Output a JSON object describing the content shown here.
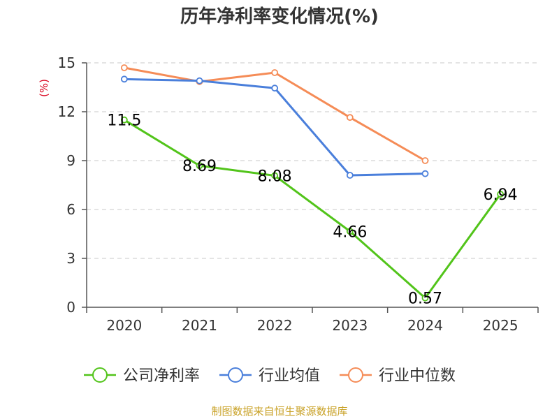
{
  "chart_data": {
    "type": "line",
    "title": "历年净利率变化情况(%)",
    "ylabel": "(%)",
    "xlabel": "",
    "categories": [
      "2020",
      "2021",
      "2022",
      "2023",
      "2024",
      "2025"
    ],
    "ylim": [
      0,
      15
    ],
    "yticks": [
      0,
      3,
      6,
      9,
      12,
      15
    ],
    "grid": true,
    "legend_position": "bottom",
    "series": [
      {
        "name": "公司净利率",
        "color": "#52c41a",
        "values": [
          11.5,
          8.69,
          8.08,
          4.66,
          0.57,
          6.94
        ],
        "labels": [
          "11.5",
          "8.69",
          "8.08",
          "4.66",
          "0.57",
          "6.94"
        ]
      },
      {
        "name": "行业均值",
        "color": "#4a7fdb",
        "values": [
          14.0,
          13.9,
          13.45,
          8.1,
          8.2,
          null
        ]
      },
      {
        "name": "行业中位数",
        "color": "#f58c57",
        "values": [
          14.7,
          13.85,
          14.4,
          11.65,
          9.0,
          null
        ]
      }
    ]
  },
  "footer": "制图数据来自恒生聚源数据库"
}
